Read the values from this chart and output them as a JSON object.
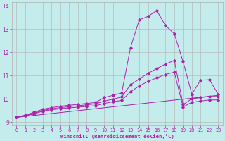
{
  "xlabel": "Windchill (Refroidissement éolien,°C)",
  "bg_color": "#c5ecec",
  "grid_color": "#b0b0b0",
  "line_color": "#aa22aa",
  "xlim": [
    -0.5,
    23.5
  ],
  "ylim": [
    8.85,
    14.15
  ],
  "yticks": [
    9,
    10,
    11,
    12,
    13,
    14
  ],
  "xticks": [
    0,
    1,
    2,
    3,
    4,
    5,
    6,
    7,
    8,
    9,
    10,
    11,
    12,
    13,
    14,
    15,
    16,
    17,
    18,
    19,
    20,
    21,
    22,
    23
  ],
  "series1_x": [
    0,
    1,
    2,
    3,
    4,
    5,
    6,
    7,
    8,
    9,
    10,
    11,
    12,
    13,
    14,
    15,
    16,
    17,
    18,
    19,
    20,
    21,
    22,
    23
  ],
  "series1_y": [
    9.2,
    9.3,
    9.42,
    9.55,
    9.62,
    9.68,
    9.72,
    9.76,
    9.8,
    9.84,
    10.05,
    10.15,
    10.25,
    12.2,
    13.4,
    13.55,
    13.8,
    13.15,
    12.8,
    11.6,
    10.2,
    10.8,
    10.82,
    10.2
  ],
  "series2_x": [
    0,
    1,
    2,
    3,
    4,
    5,
    6,
    7,
    8,
    9,
    10,
    11,
    12,
    13,
    14,
    15,
    16,
    17,
    18,
    19,
    20,
    21,
    22,
    23
  ],
  "series2_y": [
    9.2,
    9.28,
    9.38,
    9.5,
    9.57,
    9.62,
    9.66,
    9.7,
    9.74,
    9.78,
    9.9,
    9.98,
    10.08,
    10.6,
    10.85,
    11.1,
    11.3,
    11.5,
    11.65,
    9.75,
    10.0,
    10.05,
    10.1,
    10.1
  ],
  "series3_x": [
    0,
    23
  ],
  "series3_y": [
    9.2,
    10.15
  ],
  "series4_x": [
    0,
    1,
    2,
    3,
    4,
    5,
    6,
    7,
    8,
    9,
    10,
    11,
    12,
    13,
    14,
    15,
    16,
    17,
    18,
    19,
    20,
    21,
    22,
    23
  ],
  "series4_y": [
    9.2,
    9.26,
    9.35,
    9.47,
    9.53,
    9.57,
    9.61,
    9.64,
    9.67,
    9.7,
    9.8,
    9.87,
    9.93,
    10.3,
    10.55,
    10.75,
    10.9,
    11.05,
    11.15,
    9.65,
    9.85,
    9.9,
    9.95,
    9.95
  ]
}
